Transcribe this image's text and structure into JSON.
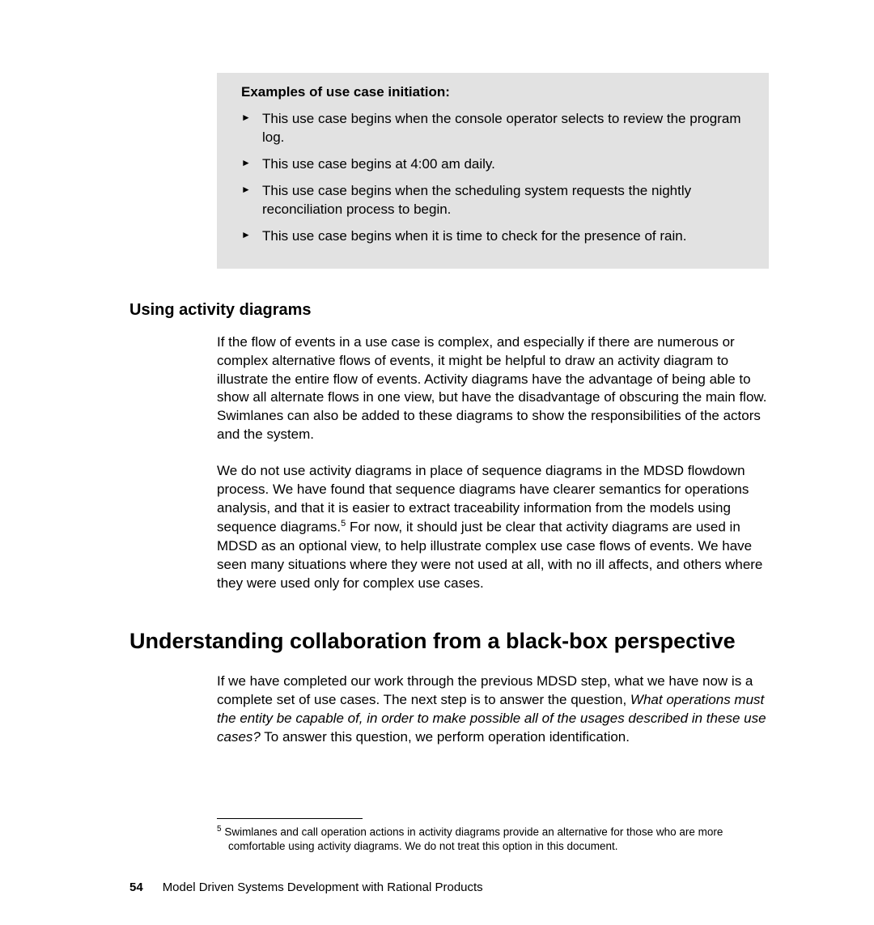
{
  "callout": {
    "title": "Examples of use case initiation:",
    "items": [
      "This use case begins when the console operator selects to review the program log.",
      "This use case begins at 4:00 am daily.",
      "This use case begins when the scheduling system requests the nightly reconciliation process to begin.",
      "This use case begins when it is time to check for the presence of rain."
    ]
  },
  "subheading": "Using activity diagrams",
  "para1": "If the flow of events in a use case is complex, and especially if there are numerous or complex alternative flows of events, it might be helpful to draw an activity diagram to illustrate the entire flow of events. Activity diagrams have the advantage of being able to show all alternate flows in one view, but have the disadvantage of obscuring the main flow. Swimlanes can also be added to these diagrams to show the responsibilities of the actors and the system.",
  "para2a": "We do not use activity diagrams in place of sequence diagrams in the MDSD flowdown process. We have found that sequence diagrams have clearer semantics for operations analysis, and that it is easier to extract traceability information from the models using sequence diagrams.",
  "para2_sup": "5",
  "para2b": " For now, it should just be clear that activity diagrams are used in MDSD as an optional view, to help illustrate complex use case flows of events. We have seen many situations where they were not used at all, with no ill affects, and others where they were used only for complex use cases.",
  "main_heading": "Understanding collaboration from a black-box perspective",
  "para3a": "If we have completed our work through the previous MDSD step, what we have now is a complete set of use cases. The next step is to answer the question, ",
  "para3_italic": "What operations must the entity be capable of, in order to make possible all of the usages described in these use cases?",
  "para3b": " To answer this question, we perform operation identification.",
  "footnote": {
    "marker": "5",
    "text": " Swimlanes and call operation actions in activity diagrams provide an alternative for those who are more comfortable using activity diagrams. We do not treat this option in this document."
  },
  "footer": {
    "page": "54",
    "title": "Model Driven Systems Development with Rational Products"
  }
}
